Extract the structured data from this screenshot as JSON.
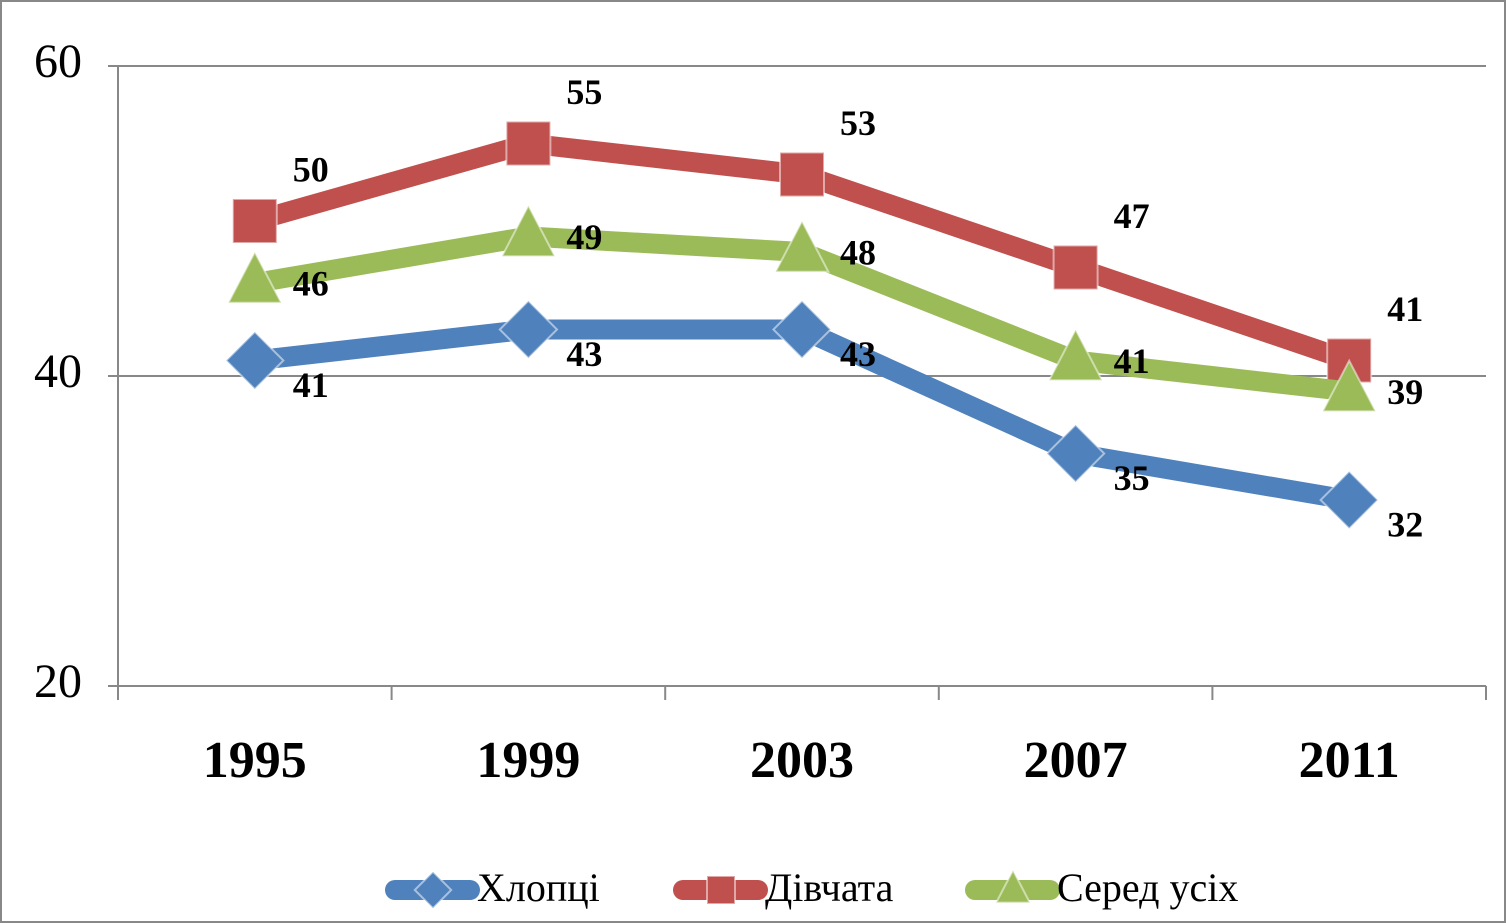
{
  "chart_data": {
    "type": "line",
    "categories": [
      "1995",
      "1999",
      "2003",
      "2007",
      "2011"
    ],
    "series": [
      {
        "name": "Хлопці",
        "color": "#4f81bd",
        "marker": "diamond",
        "values": [
          41,
          43,
          43,
          35,
          32
        ]
      },
      {
        "name": "Дівчата",
        "color": "#c0504d",
        "marker": "square",
        "values": [
          50,
          55,
          53,
          47,
          41
        ]
      },
      {
        "name": "Серед усіх",
        "color": "#9bbb59",
        "marker": "triangle",
        "values": [
          46,
          49,
          48,
          41,
          39
        ]
      }
    ],
    "ylim": [
      20,
      60
    ],
    "yticks": [
      20,
      40,
      60
    ],
    "grid": true,
    "legend": "bottom"
  }
}
